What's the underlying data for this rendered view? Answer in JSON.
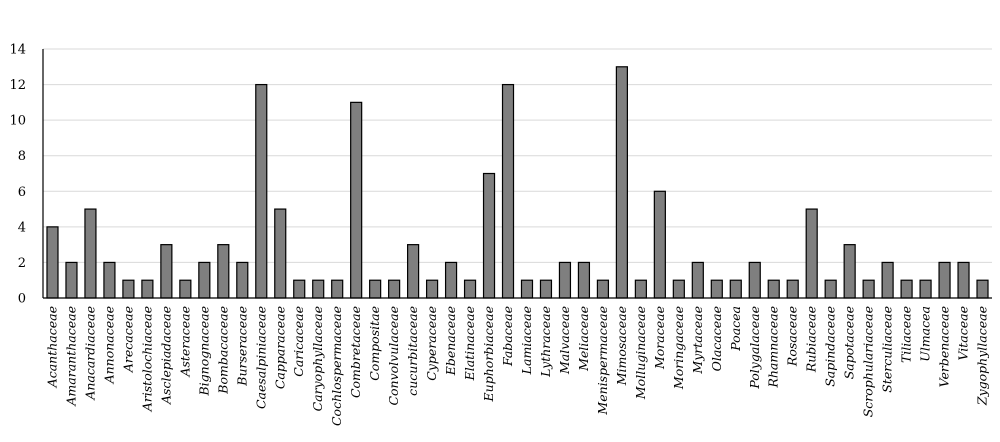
{
  "chart_data": {
    "type": "bar",
    "title": "",
    "xlabel": "",
    "ylabel": "",
    "ylim": [
      0,
      14
    ],
    "yticks": [
      "0",
      "2",
      "4",
      "6",
      "8",
      "10",
      "12",
      "14"
    ],
    "grid": true,
    "bar_color": "#7f7f7f",
    "categories": [
      "Acanthaceae",
      "Amaranthaceae",
      "Anacardiaceae",
      "Annonaceae",
      "Arecaceae",
      "Aristolochiaceae",
      "Asclepiadaceae",
      "Asteraceae",
      "Bignognaceae",
      "Bombacaceae",
      "Burseraceae",
      "Caesalpiniaceae",
      "Capparaceae",
      "Caricaceae",
      "Caryophyllaceae",
      "Cochlospermaceae",
      "Combretaceae",
      "Compositae",
      "Convolvulaceae",
      "cucurbitaceae",
      "Cyperaceae",
      "Ebenaceae",
      "Elatinaceae",
      "Euphorbiaceae",
      "Fabaceae",
      "Lamiaceae",
      "Lythraceae",
      "Malvaceae",
      "Meliaceae",
      "Menispermaceae",
      "Mimosaceae",
      "Molluginaceae",
      "Moraceae",
      "Moringaceae",
      "Myrtaceae",
      "Olacaceae",
      "Poacea",
      "Polygalaceae",
      "Rhamnaceae",
      "Rosaceae",
      "Rubiaceae",
      "Sapindaceae",
      "Sapotaceae",
      "Scrophulariaceae",
      "Sterculiaceae",
      "Tiliaceae",
      "Ulmacea",
      "Verbenaceae",
      "Vitaceae",
      "Zygophyllaceae"
    ],
    "values": [
      4,
      2,
      5,
      2,
      1,
      1,
      3,
      1,
      2,
      3,
      2,
      12,
      5,
      1,
      1,
      1,
      11,
      1,
      1,
      3,
      1,
      2,
      1,
      7,
      12,
      1,
      1,
      2,
      2,
      1,
      13,
      1,
      6,
      1,
      2,
      1,
      1,
      2,
      1,
      1,
      5,
      1,
      3,
      1,
      2,
      1,
      1,
      2,
      2,
      1
    ]
  }
}
